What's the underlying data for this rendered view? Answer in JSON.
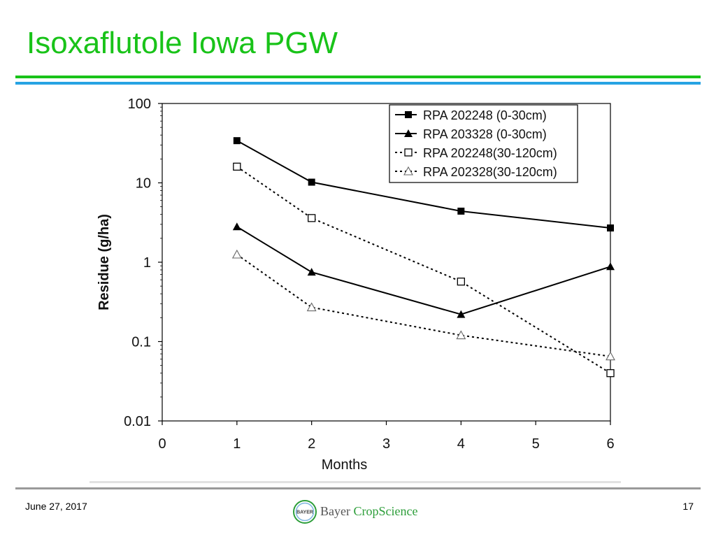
{
  "slide": {
    "title": "Isoxaflutole Iowa PGW",
    "date": "June 27, 2017",
    "page_number": "17",
    "logo": {
      "brand": "Bayer",
      "product": "CropScience",
      "badge_text": "BAYER"
    }
  },
  "colors": {
    "title": "#19c319",
    "rule_green": "#19c319",
    "rule_blue": "#27a3e3",
    "rule_grey": "#9a9a9a",
    "series": "#000000",
    "logo_green": "#2d9e3a"
  },
  "chart_data": {
    "type": "line",
    "xlabel": "Months",
    "ylabel": "Residue (g/ha)",
    "x_ticks": [
      "0",
      "1",
      "2",
      "3",
      "4",
      "5",
      "6"
    ],
    "xlim": [
      0,
      6
    ],
    "y_scale": "log",
    "ylim": [
      0.01,
      100
    ],
    "y_ticks": [
      "0.01",
      "0.1",
      "1",
      "10",
      "100"
    ],
    "grid": false,
    "legend_position": "top-right",
    "x": [
      1,
      2,
      4,
      6
    ],
    "series": [
      {
        "name": "RPA 202248 (0-30cm)",
        "values": [
          34,
          10.2,
          4.4,
          2.7
        ],
        "marker": "square-filled",
        "line": "solid"
      },
      {
        "name": "RPA 203328 (0-30cm)",
        "values": [
          2.8,
          0.75,
          0.22,
          0.88
        ],
        "marker": "triangle-filled",
        "line": "solid"
      },
      {
        "name": "RPA 202248(30-120cm)",
        "values": [
          16,
          3.6,
          0.57,
          0.04
        ],
        "marker": "square-open",
        "line": "dotted"
      },
      {
        "name": "RPA 202328(30-120cm)",
        "values": [
          1.25,
          0.27,
          0.12,
          0.065
        ],
        "marker": "triangle-open",
        "line": "dotted"
      }
    ]
  }
}
